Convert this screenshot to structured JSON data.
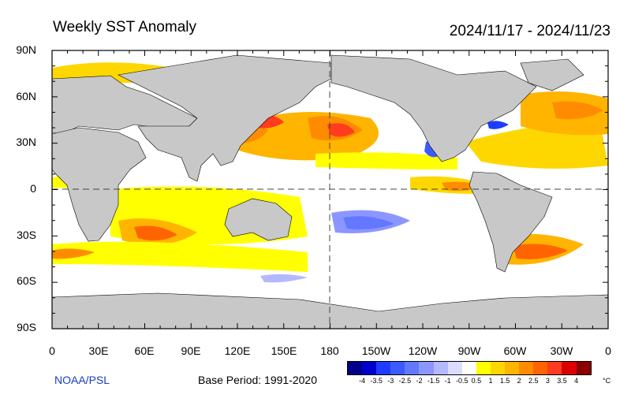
{
  "header": {
    "title": "Weekly SST Anomaly",
    "date_range": "2024/11/17 - 2024/11/23"
  },
  "map": {
    "lat_labels": [
      "90N",
      "60N",
      "30N",
      "0",
      "30S",
      "60S",
      "90S"
    ],
    "lon_labels": [
      "0",
      "30E",
      "60E",
      "90E",
      "120E",
      "150E",
      "180",
      "150W",
      "120W",
      "90W",
      "60W",
      "30W",
      "0"
    ],
    "land_color": "#c8c8c8",
    "ocean_color": "#ffffff",
    "reference_lines": [
      "equator",
      "180 meridian"
    ]
  },
  "footer": {
    "credit": "NOAA/PSL",
    "base_period": "Base Period: 1991-2020"
  },
  "colorbar": {
    "unit": "°C",
    "tick_labels": [
      "-4",
      "-3.5",
      "-3",
      "-2.5",
      "-2",
      "-1.5",
      "-1",
      "-0.5",
      "0.5",
      "1",
      "1.5",
      "2",
      "2.5",
      "3",
      "3.5",
      "4"
    ],
    "colors": [
      "#00008b",
      "#0000cd",
      "#1e3cff",
      "#3c5aff",
      "#6478ff",
      "#8c96ff",
      "#b4b9ff",
      "#dcdcff",
      "#ffffff",
      "#ffff00",
      "#ffd700",
      "#ffb400",
      "#ff8c00",
      "#ff6400",
      "#ff3c1e",
      "#dc0000",
      "#8b0000"
    ]
  }
}
